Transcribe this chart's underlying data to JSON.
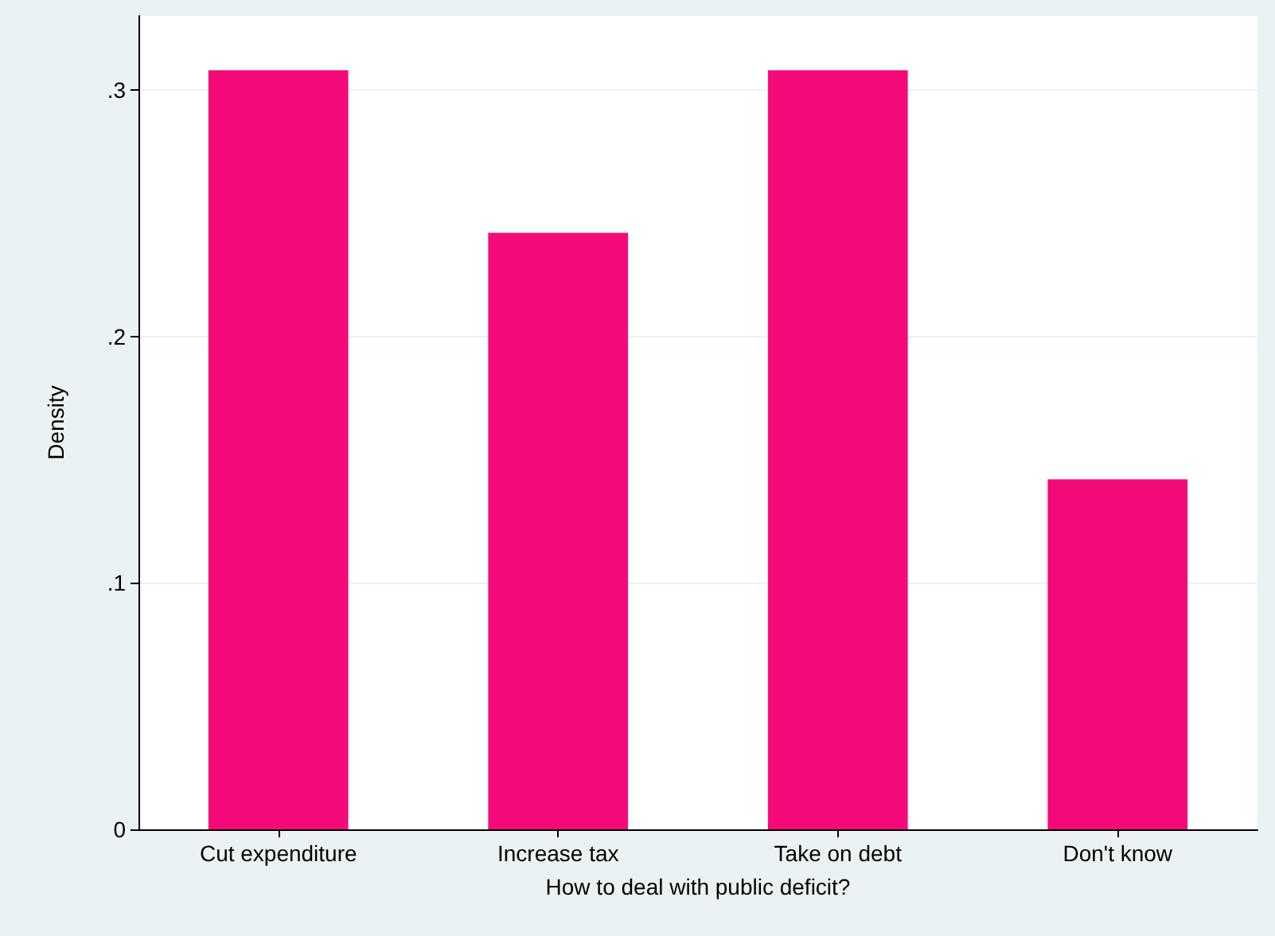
{
  "chart_data": {
    "type": "bar",
    "xlabel": "How to deal with public deficit?",
    "ylabel": "Density",
    "categories": [
      "Cut expenditure",
      "Increase tax",
      "Take on debt",
      "Don't know"
    ],
    "values": [
      0.308,
      0.242,
      0.308,
      0.142
    ],
    "color": "#f50a7a",
    "ylim": [
      0,
      0.33
    ],
    "yticks": [
      {
        "value": 0,
        "label": "0"
      },
      {
        "value": 0.1,
        "label": ".1"
      },
      {
        "value": 0.2,
        "label": ".2"
      },
      {
        "value": 0.3,
        "label": ".3"
      }
    ],
    "grid": "y"
  }
}
